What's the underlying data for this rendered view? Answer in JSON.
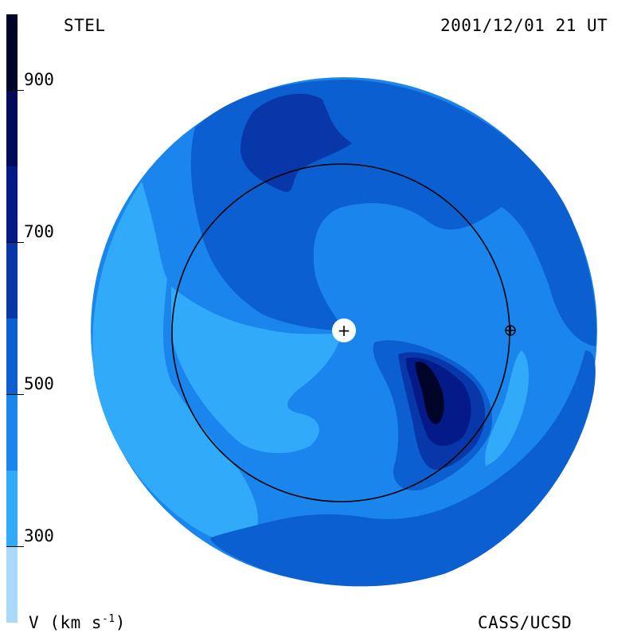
{
  "header": {
    "source": "STEL",
    "timestamp": "2001/12/01 21 UT"
  },
  "footer": {
    "quantity": "V",
    "unit_open": "(km s",
    "unit_exp": "-1",
    "unit_close": ")",
    "credit": "CASS/UCSD"
  },
  "colorbar": {
    "ticks": [
      {
        "value": 900,
        "label": "900"
      },
      {
        "value": 700,
        "label": "700"
      },
      {
        "value": 500,
        "label": "500"
      },
      {
        "value": 300,
        "label": "300"
      }
    ],
    "bands": [
      {
        "from": 200,
        "to": 300,
        "color": "#a9d9fb"
      },
      {
        "from": 300,
        "to": 400,
        "color": "#31aaf9"
      },
      {
        "from": 400,
        "to": 500,
        "color": "#1a85ec"
      },
      {
        "from": 500,
        "to": 600,
        "color": "#0c5fd0"
      },
      {
        "from": 600,
        "to": 700,
        "color": "#0737a8"
      },
      {
        "from": 700,
        "to": 800,
        "color": "#041a88"
      },
      {
        "from": 800,
        "to": 900,
        "color": "#020a5a"
      },
      {
        "from": 900,
        "to": 1000,
        "color": "#000528"
      }
    ]
  },
  "map": {
    "center_marker": "+",
    "earth_marker": "earth-symbol-icon"
  }
}
